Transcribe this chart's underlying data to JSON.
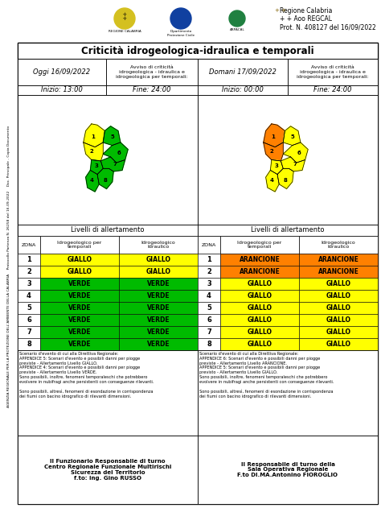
{
  "title": "Criticità idrogeologica-idraulica e temporali",
  "header_right": "Regione Calabria\n+ + Aoo REGCAL\nProt. N. 408127 del 16/09/2022",
  "col1_date": "Oggi 16/09/2022",
  "col1_avviso": "Avviso di criticità\nidrogeologica - idraulica e\nidrogeologica per temporali:",
  "col1_inizio": "Inizio: 13:00",
  "col1_fine": "Fine: 24:00",
  "col2_date": "Domani 17/09/2022",
  "col2_avviso": "Avviso di criticità\nidrogeologica - idraulica e\nidrogeologica per temporali:",
  "col2_inizio": "Inizio: 00:00",
  "col2_fine": "Fine: 24:00",
  "levels_label": "Livelli di allertamento",
  "table1_rows": [
    [
      "1",
      "GIALLO",
      "GIALLO"
    ],
    [
      "2",
      "GIALLO",
      "GIALLO"
    ],
    [
      "3",
      "VERDE",
      "VERDE"
    ],
    [
      "4",
      "VERDE",
      "VERDE"
    ],
    [
      "5",
      "VERDE",
      "VERDE"
    ],
    [
      "6",
      "VERDE",
      "VERDE"
    ],
    [
      "7",
      "VERDE",
      "VERDE"
    ],
    [
      "8",
      "VERDE",
      "VERDE"
    ]
  ],
  "table2_rows": [
    [
      "1",
      "ARANCIONE",
      "ARANCIONE"
    ],
    [
      "2",
      "ARANCIONE",
      "ARANCIONE"
    ],
    [
      "3",
      "GIALLO",
      "GIALLO"
    ],
    [
      "4",
      "GIALLO",
      "GIALLO"
    ],
    [
      "5",
      "GIALLO",
      "GIALLO"
    ],
    [
      "6",
      "GIALLO",
      "GIALLO"
    ],
    [
      "7",
      "GIALLO",
      "GIALLO"
    ],
    [
      "8",
      "GIALLO",
      "GIALLO"
    ]
  ],
  "color_map": {
    "GIALLO": "#FFFF00",
    "VERDE": "#00BB00",
    "ARANCIONE": "#FF8000",
    "ROSSO": "#FF0000"
  },
  "scenario1_title": "Scenario d'evento di cui alla Direttiva Regionale:",
  "scenario1_body": "APPENDICE 5: Scenari d'evento e possibili danni per piogge\npreviste - Allertamento Livello GIALLO.\nAPPENDICE 4: Scenari d'evento e possibili danni per piogge\npreviste - Allertamento Livello VERDE.\nSono possibili, inoltre, fenomeni temporaleschi che potrebbero\nevolvere in nubifragi anche persistenti con conseguenze rilevanti.\n\nSono possibili, altresì, fenomeni di esondazione in corrispondenza\ndei fiumi con bacino idrografico di rilevanti dimensioni.",
  "scenario2_title": "Scenario d'evento di cui alla Direttiva Regionale:",
  "scenario2_body": "APPENDICE 6: Scenari d'evento e possibili danni per piogge\npreviste - Allertamento Livello ARANCIONE.\nAPPENDICE 5: Scenari d'evento e possibili danni per piogge\nprevisto - Allertamento Livello GIALLO.\nSono possibili, inoltre, fenomeni temporaleschi che potrebbero\nevolvere in nubifragi anche persistenti con conseguenze rilevanti.\n\nSono possibili, altresì, fenomeni di esondazione in corrispondenza\ndei fiumi con bacino idrografico di rilevanti dimensioni.",
  "footer1": "Il Funzionario Responsabile di turno\nCentro Regionale Funzionale Multirischi\nSicurezza del Territorio\nf.to: ing. Gino RUSSO",
  "footer2": "Il Responsabile di turno della\nSala Operativa Regionale\nF.to DI.MA.Antonino FIOROGLIO",
  "sidebar_text": "AGENZIA REGIONALE PER LA PROTEZIONE DELL'AMBIENTE DELLA CALABRIA    Protocollo Partenza N. 26258 del 16-09-2022    Doc. Principale - Copia Documento"
}
